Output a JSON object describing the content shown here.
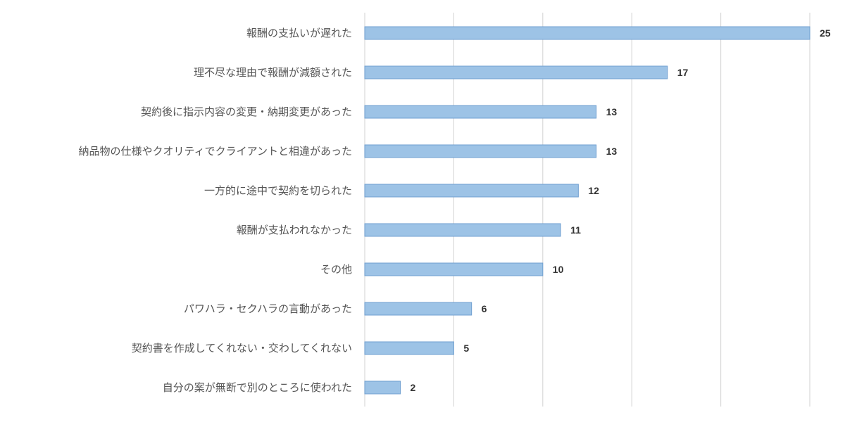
{
  "chart_data": {
    "type": "bar",
    "orientation": "horizontal",
    "categories": [
      "報酬の支払いが遅れた",
      "理不尽な理由で報酬が減額された",
      "契約後に指示内容の変更・納期変更があった",
      "納品物の仕様やクオリティでクライアントと相違があった",
      "一方的に途中で契約を切られた",
      "報酬が支払われなかった",
      "その他",
      "パワハラ・セクハラの言動があった",
      "契約書を作成してくれない・交わしてくれない",
      "自分の案が無断で別のところに使われた"
    ],
    "values": [
      25,
      17,
      13,
      13,
      12,
      11,
      10,
      6,
      5,
      2
    ],
    "xlim": [
      0,
      25
    ],
    "gridlines": [
      0,
      5,
      10,
      15,
      20,
      25
    ],
    "grid": true,
    "data_labels": true,
    "legend": "none",
    "colors": {
      "bar_fill": "#9dc3e6",
      "bar_stroke": "#6f9fd0",
      "grid": "#d9d9d9"
    }
  }
}
